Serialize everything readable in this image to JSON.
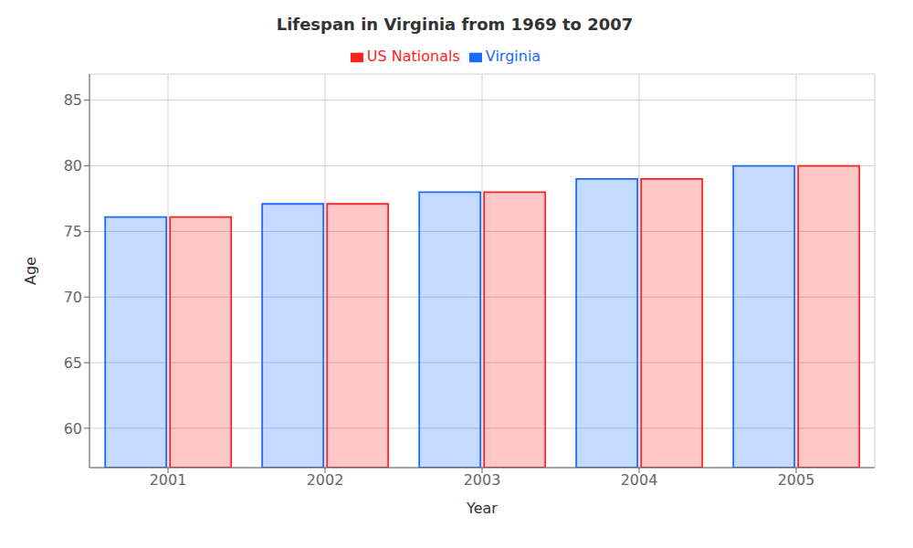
{
  "chart_data": {
    "type": "bar",
    "title": "Lifespan in Virginia from 1969 to 2007",
    "x_label": "Year",
    "y_label": "Age",
    "categories": [
      "2001",
      "2002",
      "2003",
      "2004",
      "2005"
    ],
    "series": [
      {
        "name": "Virginia",
        "color": "#1a6aff",
        "values": [
          76.1,
          77.1,
          78.0,
          79.0,
          80.0
        ]
      },
      {
        "name": "US Nationals",
        "color": "#ff2222",
        "values": [
          76.1,
          77.1,
          78.0,
          79.0,
          80.0
        ]
      }
    ],
    "ylim": [
      57,
      87
    ],
    "yticks": [
      60,
      65,
      70,
      75,
      80,
      85
    ],
    "grid": true,
    "legend": "top"
  }
}
